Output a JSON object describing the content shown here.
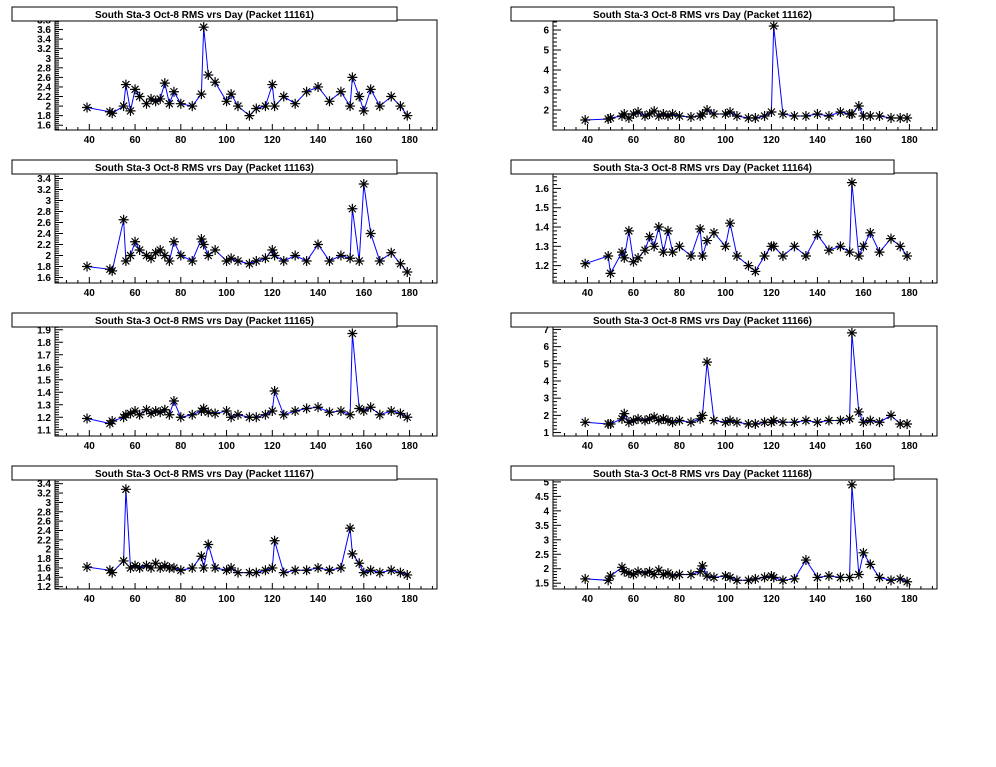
{
  "x_shared": [
    39,
    49,
    50,
    55,
    56,
    58,
    60,
    62,
    65,
    67,
    69,
    71,
    73,
    75,
    77,
    80,
    85,
    89,
    90,
    92,
    95,
    100,
    102,
    105,
    110,
    113,
    117,
    120,
    121,
    125,
    130,
    135,
    140,
    145,
    150,
    154,
    155,
    158,
    160,
    163,
    167,
    172,
    176,
    179
  ],
  "x_ticks": [
    40,
    60,
    80,
    100,
    120,
    140,
    160,
    180
  ],
  "xlim": [
    25,
    192
  ],
  "colors": {
    "line": "#0000ff",
    "marker": "#000000",
    "frame": "#000000"
  },
  "chart_data": [
    {
      "type": "line",
      "title": "South Sta-3 Oct-8 RMS vrs Day (Packet 11161)",
      "xlabel": "",
      "ylabel": "",
      "ylim": [
        1.5,
        3.8
      ],
      "yticks": [
        1.6,
        1.8,
        2,
        2.2,
        2.4,
        2.6,
        2.8,
        3,
        3.2,
        3.4,
        3.6,
        3.8
      ],
      "y": [
        1.97,
        1.88,
        1.85,
        2.0,
        2.45,
        1.9,
        2.35,
        2.2,
        2.05,
        2.15,
        2.1,
        2.15,
        2.48,
        2.05,
        2.3,
        2.05,
        2.0,
        2.25,
        3.65,
        2.65,
        2.5,
        2.1,
        2.25,
        2.0,
        1.8,
        1.95,
        2.0,
        2.45,
        2.0,
        2.2,
        2.05,
        2.3,
        2.4,
        2.1,
        2.3,
        2.0,
        2.6,
        2.2,
        1.9,
        2.35,
        2.0,
        2.2,
        2.0,
        1.8
      ]
    },
    {
      "type": "line",
      "title": "South Sta-3 Oct-8 RMS vrs Day (Packet 11162)",
      "xlabel": "",
      "ylabel": "",
      "ylim": [
        1.0,
        6.5
      ],
      "yticks": [
        2,
        3,
        4,
        5,
        6
      ],
      "y": [
        1.5,
        1.55,
        1.6,
        1.7,
        1.8,
        1.6,
        1.8,
        1.9,
        1.7,
        1.8,
        1.95,
        1.7,
        1.8,
        1.7,
        1.8,
        1.7,
        1.65,
        1.7,
        1.8,
        2.0,
        1.8,
        1.8,
        1.9,
        1.7,
        1.6,
        1.6,
        1.7,
        1.9,
        6.2,
        1.8,
        1.7,
        1.7,
        1.8,
        1.7,
        1.9,
        1.8,
        1.8,
        2.2,
        1.7,
        1.7,
        1.7,
        1.6,
        1.6,
        1.6
      ]
    },
    {
      "type": "line",
      "title": "South Sta-3 Oct-8 RMS vrs Day (Packet 11163)",
      "xlabel": "",
      "ylabel": "",
      "ylim": [
        1.5,
        3.5
      ],
      "yticks": [
        1.6,
        1.8,
        2,
        2.2,
        2.4,
        2.6,
        2.8,
        3,
        3.2,
        3.4
      ],
      "y": [
        1.8,
        1.75,
        1.72,
        2.65,
        1.9,
        2.0,
        2.25,
        2.1,
        2.0,
        1.95,
        2.05,
        2.1,
        2.0,
        1.9,
        2.25,
        2.0,
        1.9,
        2.3,
        2.2,
        2.0,
        2.1,
        1.9,
        1.95,
        1.9,
        1.85,
        1.9,
        1.95,
        2.1,
        2.0,
        1.9,
        2.0,
        1.9,
        2.2,
        1.9,
        2.0,
        1.95,
        2.85,
        1.9,
        3.3,
        2.4,
        1.9,
        2.05,
        1.85,
        1.7
      ]
    },
    {
      "type": "line",
      "title": "South Sta-3 Oct-8 RMS vrs Day (Packet 11164)",
      "xlabel": "",
      "ylabel": "",
      "ylim": [
        1.11,
        1.68
      ],
      "yticks": [
        1.2,
        1.3,
        1.4,
        1.5,
        1.6
      ],
      "y": [
        1.21,
        1.25,
        1.16,
        1.27,
        1.24,
        1.38,
        1.22,
        1.24,
        1.28,
        1.35,
        1.3,
        1.4,
        1.27,
        1.38,
        1.27,
        1.3,
        1.25,
        1.39,
        1.25,
        1.33,
        1.37,
        1.3,
        1.42,
        1.25,
        1.2,
        1.17,
        1.25,
        1.3,
        1.3,
        1.25,
        1.3,
        1.25,
        1.36,
        1.28,
        1.3,
        1.27,
        1.63,
        1.25,
        1.3,
        1.37,
        1.27,
        1.34,
        1.3,
        1.25
      ]
    },
    {
      "type": "line",
      "title": "South Sta-3 Oct-8 RMS vrs Day (Packet 11165)",
      "xlabel": "",
      "ylabel": "",
      "ylim": [
        1.05,
        1.93
      ],
      "yticks": [
        1.1,
        1.2,
        1.3,
        1.4,
        1.5,
        1.6,
        1.7,
        1.8,
        1.9
      ],
      "y": [
        1.19,
        1.15,
        1.17,
        1.2,
        1.22,
        1.23,
        1.25,
        1.22,
        1.26,
        1.23,
        1.25,
        1.24,
        1.26,
        1.22,
        1.33,
        1.2,
        1.22,
        1.25,
        1.27,
        1.24,
        1.23,
        1.25,
        1.2,
        1.22,
        1.2,
        1.2,
        1.22,
        1.25,
        1.41,
        1.22,
        1.25,
        1.27,
        1.28,
        1.24,
        1.25,
        1.22,
        1.87,
        1.27,
        1.25,
        1.28,
        1.22,
        1.25,
        1.23,
        1.2
      ]
    },
    {
      "type": "line",
      "title": "South Sta-3 Oct-8 RMS vrs Day (Packet 11166)",
      "xlabel": "",
      "ylabel": "",
      "ylim": [
        0.8,
        7.2
      ],
      "yticks": [
        1,
        2,
        3,
        4,
        5,
        6,
        7
      ],
      "y": [
        1.6,
        1.5,
        1.5,
        1.8,
        2.1,
        1.6,
        1.7,
        1.8,
        1.7,
        1.8,
        1.9,
        1.7,
        1.8,
        1.7,
        1.6,
        1.7,
        1.6,
        1.8,
        2.0,
        5.1,
        1.7,
        1.6,
        1.7,
        1.6,
        1.5,
        1.5,
        1.6,
        1.6,
        1.7,
        1.6,
        1.6,
        1.7,
        1.6,
        1.7,
        1.7,
        1.8,
        6.8,
        2.2,
        1.6,
        1.7,
        1.6,
        2.0,
        1.5,
        1.5
      ]
    },
    {
      "type": "line",
      "title": "South Sta-3 Oct-8 RMS vrs Day (Packet 11167)",
      "xlabel": "",
      "ylabel": "",
      "ylim": [
        1.15,
        3.5
      ],
      "yticks": [
        1.2,
        1.4,
        1.6,
        1.8,
        2,
        2.2,
        2.4,
        2.6,
        2.8,
        3,
        3.2,
        3.4
      ],
      "y": [
        1.62,
        1.55,
        1.5,
        1.75,
        3.28,
        1.6,
        1.65,
        1.6,
        1.65,
        1.6,
        1.7,
        1.6,
        1.65,
        1.6,
        1.6,
        1.55,
        1.6,
        1.85,
        1.6,
        2.1,
        1.6,
        1.55,
        1.6,
        1.5,
        1.5,
        1.5,
        1.55,
        1.6,
        2.18,
        1.5,
        1.55,
        1.55,
        1.6,
        1.55,
        1.6,
        2.45,
        1.9,
        1.7,
        1.5,
        1.55,
        1.5,
        1.55,
        1.5,
        1.45
      ]
    },
    {
      "type": "line",
      "title": "South Sta-3 Oct-8 RMS vrs Day (Packet 11168)",
      "xlabel": "",
      "ylabel": "",
      "ylim": [
        1.3,
        5.1
      ],
      "yticks": [
        1.5,
        2,
        2.5,
        3,
        3.5,
        4,
        4.5,
        5
      ],
      "y": [
        1.65,
        1.6,
        1.75,
        2.05,
        1.9,
        1.85,
        1.8,
        1.9,
        1.85,
        1.9,
        1.8,
        1.95,
        1.8,
        1.85,
        1.75,
        1.8,
        1.8,
        1.9,
        2.1,
        1.75,
        1.7,
        1.75,
        1.7,
        1.6,
        1.6,
        1.65,
        1.7,
        1.75,
        1.7,
        1.6,
        1.65,
        2.3,
        1.7,
        1.75,
        1.7,
        1.7,
        4.9,
        1.8,
        2.55,
        2.15,
        1.7,
        1.6,
        1.65,
        1.55
      ]
    }
  ]
}
